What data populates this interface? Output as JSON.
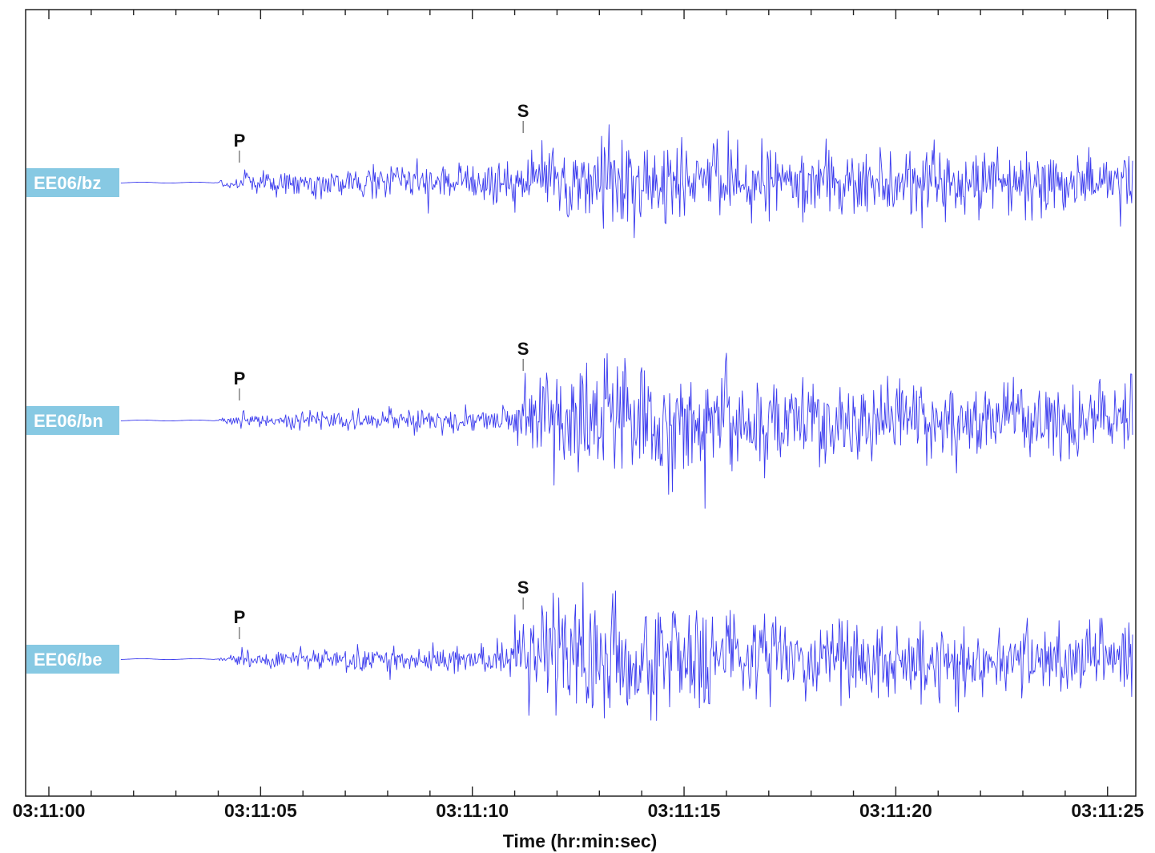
{
  "chart_data": {
    "type": "line",
    "xlabel": "Time (hr:min:sec)",
    "ylabel": "",
    "title": "",
    "x_range_seconds_after_start": [
      0,
      25
    ],
    "x_ticks": [
      "03:11:00",
      "03:11:05",
      "03:11:10",
      "03:11:15",
      "03:11:20",
      "03:11:25"
    ],
    "grid": false,
    "line_color": "#3a3aee",
    "label_box_color": "#87c9e3",
    "series": [
      {
        "name": "EE06/bz",
        "picks": [
          {
            "phase": "P",
            "time": "03:11:04.5"
          },
          {
            "phase": "S",
            "time": "03:11:11.2"
          }
        ],
        "envelope": [
          {
            "t": 4.0,
            "amp": 0.05
          },
          {
            "t": 4.5,
            "amp": 0.25
          },
          {
            "t": 6.0,
            "amp": 0.28
          },
          {
            "t": 8.0,
            "amp": 0.33
          },
          {
            "t": 10.0,
            "amp": 0.37
          },
          {
            "t": 11.2,
            "amp": 0.45
          },
          {
            "t": 12.0,
            "amp": 0.75
          },
          {
            "t": 13.0,
            "amp": 1.0
          },
          {
            "t": 16.0,
            "amp": 0.65
          },
          {
            "t": 20.0,
            "amp": 0.65
          },
          {
            "t": 25.0,
            "amp": 0.6
          }
        ]
      },
      {
        "name": "EE06/bn",
        "picks": [
          {
            "phase": "P",
            "time": "03:11:04.5"
          },
          {
            "phase": "S",
            "time": "03:11:11.2"
          }
        ],
        "envelope": [
          {
            "t": 4.0,
            "amp": 0.02
          },
          {
            "t": 4.6,
            "amp": 0.13
          },
          {
            "t": 8.0,
            "amp": 0.17
          },
          {
            "t": 10.8,
            "amp": 0.2
          },
          {
            "t": 11.2,
            "amp": 0.55
          },
          {
            "t": 12.0,
            "amp": 1.0
          },
          {
            "t": 14.0,
            "amp": 0.95
          },
          {
            "t": 17.0,
            "amp": 0.7
          },
          {
            "t": 20.0,
            "amp": 0.68
          },
          {
            "t": 25.0,
            "amp": 0.62
          }
        ]
      },
      {
        "name": "EE06/be",
        "picks": [
          {
            "phase": "P",
            "time": "03:11:04.5"
          },
          {
            "phase": "S",
            "time": "03:11:11.2"
          }
        ],
        "envelope": [
          {
            "t": 4.0,
            "amp": 0.02
          },
          {
            "t": 4.6,
            "amp": 0.15
          },
          {
            "t": 8.0,
            "amp": 0.2
          },
          {
            "t": 10.8,
            "amp": 0.25
          },
          {
            "t": 11.2,
            "amp": 0.6
          },
          {
            "t": 12.0,
            "amp": 1.0
          },
          {
            "t": 14.0,
            "amp": 0.9
          },
          {
            "t": 17.0,
            "amp": 0.65
          },
          {
            "t": 20.0,
            "amp": 0.6
          },
          {
            "t": 25.0,
            "amp": 0.62
          }
        ]
      }
    ]
  }
}
